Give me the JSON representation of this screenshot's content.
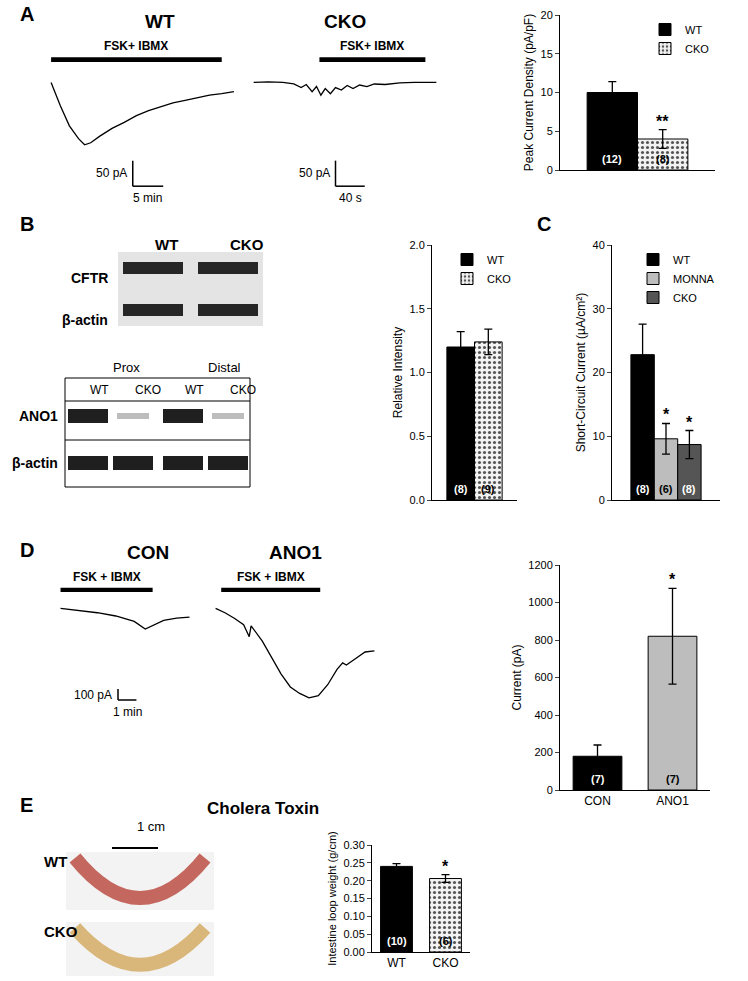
{
  "panel_labels": [
    "A",
    "B",
    "C",
    "D",
    "E"
  ],
  "blots": [
    {
      "columns": [
        "WT",
        "CKO"
      ],
      "rows": [
        "CFTR",
        "β-actin"
      ]
    },
    {
      "groups": [
        "Prox",
        "Distal"
      ],
      "columns": [
        "WT",
        "CKO",
        "WT",
        "CKO"
      ],
      "rows": [
        "ANO1",
        "β-actin"
      ]
    }
  ],
  "photo": {
    "title": "Cholera Toxin",
    "scale_label": "1 cm",
    "rows": [
      "WT",
      "CKO"
    ]
  },
  "chart_data": [
    {
      "type": "line",
      "title": "WT",
      "tick_labels": false,
      "color": "#000000",
      "x": [
        0,
        0.5,
        1.5,
        3,
        4.5,
        5.5,
        6.5,
        8,
        10,
        12,
        14,
        16,
        18,
        20,
        22,
        24,
        26,
        28,
        30
      ],
      "values": [
        0,
        -15,
        -45,
        -85,
        -110,
        -122,
        -118,
        -105,
        -90,
        -78,
        -65,
        -55,
        -48,
        -40,
        -35,
        -30,
        -25,
        -22,
        -18
      ],
      "xlim": [
        -1,
        31
      ],
      "ylim": [
        -230,
        40
      ],
      "stimulus": {
        "label": "FSK+ IBMX",
        "x": [
          0,
          28
        ]
      },
      "scale_bar": {
        "x": 5,
        "x_label": "5 min",
        "y": 50,
        "y_label": "50 pA"
      }
    },
    {
      "type": "line",
      "title": "CKO",
      "tick_labels": false,
      "color": "#000000",
      "x": [
        0,
        20,
        40,
        55,
        65,
        72,
        80,
        86,
        92,
        98,
        105,
        112,
        120,
        128,
        136,
        145,
        155,
        165,
        180,
        200,
        220,
        250
      ],
      "values": [
        0,
        1,
        0,
        -3,
        -10,
        -4,
        -18,
        -8,
        -25,
        -12,
        -22,
        -10,
        -15,
        -6,
        -12,
        -5,
        -8,
        -3,
        -4,
        -1,
        0,
        0
      ],
      "xlim": [
        -5,
        255
      ],
      "ylim": [
        -230,
        40
      ],
      "stimulus": {
        "label": "FSK+ IBMX",
        "x": [
          90,
          235
        ]
      },
      "scale_bar": {
        "x": 40,
        "x_label": "40 s",
        "y": 50,
        "y_label": "50 pA"
      }
    },
    {
      "type": "bar",
      "y_label": "Peak Current Density (pA/pF)",
      "categories": [
        null
      ],
      "tick_labels": "y",
      "legend": "top right",
      "series": [
        {
          "name": "WT",
          "color": "#000000",
          "values": [
            10
          ],
          "errors": [
            1.4
          ],
          "n_labels": [
            "(12)"
          ]
        },
        {
          "name": "CKO",
          "color": "#f2f2f2",
          "marker": "dotted",
          "values": [
            4
          ],
          "errors": [
            1.2
          ],
          "n_labels": [
            "(8)"
          ],
          "significance": [
            "**"
          ]
        }
      ],
      "ylim": [
        0,
        20
      ],
      "yticks": [
        0,
        5,
        10,
        15,
        20
      ]
    },
    {
      "type": "bar",
      "y_label": "Relative Intensity",
      "categories": [
        null
      ],
      "tick_labels": "y",
      "legend": "top right",
      "series": [
        {
          "name": "WT",
          "color": "#000000",
          "values": [
            1.2
          ],
          "errors": [
            0.12
          ],
          "n_labels": [
            "(8)"
          ]
        },
        {
          "name": "CKO",
          "color": "#f2f2f2",
          "marker": "dotted",
          "values": [
            1.24
          ],
          "errors": [
            0.1
          ],
          "n_labels": [
            "(9)"
          ]
        }
      ],
      "ylim": [
        0,
        2
      ],
      "yticks": [
        {
          "value": 0,
          "label": "0.0"
        },
        {
          "value": 0.5,
          "label": "0.5"
        },
        {
          "value": 1,
          "label": "1.0"
        },
        {
          "value": 1.5,
          "label": "1.5"
        },
        {
          "value": 2,
          "label": "2.0"
        }
      ]
    },
    {
      "type": "bar",
      "y_label": "Short-Circuit Current (µA/cm²)",
      "categories": [
        null
      ],
      "tick_labels": "y",
      "legend": "top right",
      "series": [
        {
          "name": "WT",
          "color": "#000000",
          "values": [
            22.8
          ],
          "errors": [
            4.8
          ],
          "n_labels": [
            "(8)"
          ]
        },
        {
          "name": "MONNA",
          "color": "#bdbdbd",
          "values": [
            9.6
          ],
          "errors": [
            2.4
          ],
          "n_labels": [
            "(6)"
          ],
          "significance": [
            "*"
          ]
        },
        {
          "name": "CKO",
          "color": "#555555",
          "values": [
            8.7
          ],
          "errors": [
            2.2
          ],
          "n_labels": [
            "(8)"
          ],
          "significance": [
            "*"
          ]
        }
      ],
      "ylim": [
        0,
        40
      ],
      "yticks": [
        0,
        10,
        20,
        30,
        40
      ]
    },
    {
      "type": "line",
      "title": "CON",
      "tick_labels": false,
      "color": "#000000",
      "x": [
        0,
        1,
        2,
        3,
        4,
        4.6,
        5,
        5.6,
        6.3,
        7
      ],
      "values": [
        0,
        -20,
        -40,
        -70,
        -120,
        -190,
        -160,
        -110,
        -90,
        -80
      ],
      "xlim": [
        -0.3,
        7.3
      ],
      "ylim": [
        -950,
        150
      ],
      "stimulus": {
        "label": "FSK + IBMX",
        "x": [
          0,
          5
        ]
      },
      "scale_bar": {
        "x": 1,
        "x_label": "1 min",
        "y": 100,
        "y_label": "100 pA"
      }
    },
    {
      "type": "line",
      "title": "ANO1",
      "tick_labels": false,
      "color": "#000000",
      "x": [
        0,
        0.5,
        1,
        1.5,
        1.8,
        1.9,
        2.5,
        3,
        3.5,
        4,
        4.5,
        5,
        5.5,
        6,
        6.5,
        6.8,
        7,
        7.5,
        8,
        8.5
      ],
      "values": [
        0,
        -40,
        -90,
        -150,
        -260,
        -160,
        -300,
        -450,
        -600,
        -720,
        -780,
        -820,
        -800,
        -700,
        -560,
        -500,
        -520,
        -460,
        -400,
        -390
      ],
      "xlim": [
        -0.3,
        8.8
      ],
      "ylim": [
        -950,
        150
      ],
      "stimulus": {
        "label": "FSK + IBMX",
        "x": [
          0.3,
          5.6
        ]
      }
    },
    {
      "type": "bar",
      "y_label": "Current (pA)",
      "categories": [
        "CON",
        "ANO1"
      ],
      "series": [
        {
          "name": "CON",
          "color": "#000000",
          "values": [
            180,
            null
          ],
          "errors": [
            60,
            null
          ],
          "n_labels": [
            "(7)",
            null
          ]
        },
        {
          "name": "ANO1",
          "color": "#bdbdbd",
          "values": [
            null,
            820
          ],
          "errors": [
            null,
            255
          ],
          "n_labels": [
            null,
            "(7)"
          ],
          "significance": [
            null,
            "*"
          ]
        }
      ],
      "ylim": [
        0,
        1200
      ],
      "yticks": [
        0,
        200,
        400,
        600,
        800,
        1000,
        1200
      ]
    },
    {
      "type": "bar",
      "y_label": "Intestine loop weight (g/cm)",
      "categories": [
        "WT",
        "CKO"
      ],
      "series": [
        {
          "name": "WT",
          "color": "#000000",
          "values": [
            0.24,
            null
          ],
          "errors": [
            0.008,
            null
          ],
          "n_labels": [
            "(10)",
            null
          ]
        },
        {
          "name": "CKO",
          "color": "#f2f2f2",
          "marker": "dotted",
          "values": [
            null,
            0.206
          ],
          "errors": [
            null,
            0.011
          ],
          "n_labels": [
            null,
            "(6)"
          ],
          "significance": [
            null,
            "*"
          ]
        }
      ],
      "ylim": [
        0,
        0.3
      ],
      "yticks": [
        {
          "value": 0,
          "label": "0.00"
        },
        {
          "value": 0.05,
          "label": "0.05"
        },
        {
          "value": 0.1,
          "label": "0.10"
        },
        {
          "value": 0.15,
          "label": "0.15"
        },
        {
          "value": 0.2,
          "label": "0.20"
        },
        {
          "value": 0.25,
          "label": "0.25"
        },
        {
          "value": 0.3,
          "label": "0.30"
        }
      ]
    }
  ]
}
